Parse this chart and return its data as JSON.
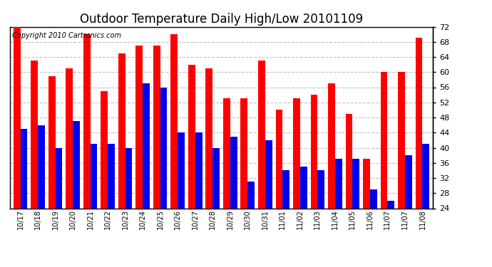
{
  "title": "Outdoor Temperature Daily High/Low 20101109",
  "copyright": "Copyright 2010 Cartronics.com",
  "labels": [
    "10/17",
    "10/18",
    "10/19",
    "10/20",
    "10/21",
    "10/22",
    "10/23",
    "10/24",
    "10/25",
    "10/26",
    "10/27",
    "10/28",
    "10/29",
    "10/30",
    "10/31",
    "11/01",
    "11/02",
    "11/03",
    "11/04",
    "11/05",
    "11/06",
    "11/07",
    "11/07",
    "11/08"
  ],
  "highs": [
    73,
    63,
    59,
    61,
    70,
    55,
    65,
    67,
    67,
    70,
    62,
    61,
    53,
    53,
    63,
    50,
    53,
    54,
    57,
    49,
    37,
    60,
    60,
    69
  ],
  "lows": [
    45,
    46,
    40,
    47,
    41,
    41,
    40,
    57,
    56,
    44,
    44,
    40,
    43,
    31,
    42,
    34,
    35,
    34,
    37,
    37,
    29,
    26,
    38,
    41
  ],
  "high_color": "#ff0000",
  "low_color": "#0000ee",
  "bg_color": "#ffffff",
  "grid_color": "#c0c0c0",
  "ylim_min": 24.0,
  "ylim_max": 72.0,
  "yticks": [
    24.0,
    28.0,
    32.0,
    36.0,
    40.0,
    44.0,
    48.0,
    52.0,
    56.0,
    60.0,
    64.0,
    68.0,
    72.0
  ],
  "title_fontsize": 12,
  "copyright_fontsize": 7,
  "bar_width": 0.4,
  "fig_width": 6.9,
  "fig_height": 3.75,
  "dpi": 100
}
